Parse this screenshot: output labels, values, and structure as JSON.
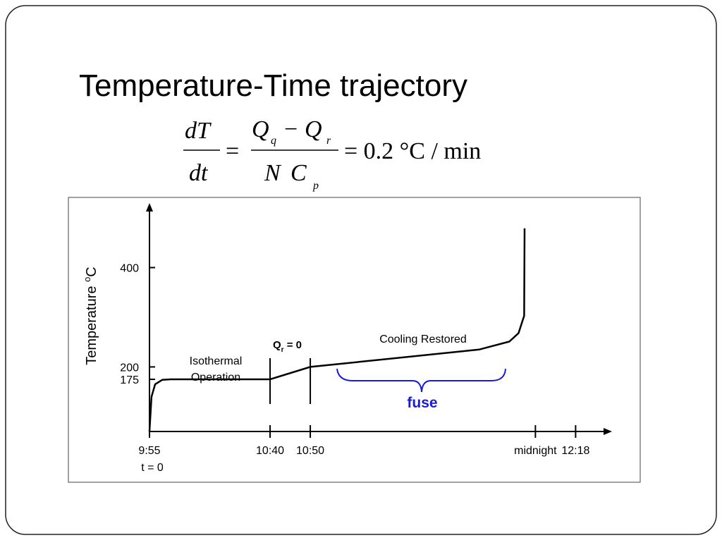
{
  "chart_data": {
    "type": "line",
    "title": "Temperature-Time trajectory",
    "equation": {
      "lhs_num": "dT",
      "lhs_den": "dt",
      "eq1": "=",
      "num_q1": "Q",
      "num_q1_sub": "q",
      "minus": "−",
      "num_q2": "Q",
      "num_q2_sub": "r",
      "den_n": "N",
      "den_c": "C",
      "den_c_sub": "p",
      "rhs": "= 0.2 °C / min"
    },
    "y_label": {
      "text": "Temperature ",
      "sup": "o",
      "unit": "C"
    },
    "annotations": {
      "isothermal": [
        "Isothermal",
        "Operation"
      ],
      "q_zero": {
        "symbol": "Q",
        "sub": "r",
        "rest": " = 0"
      },
      "cooling": "Cooling Restored",
      "fuse": "fuse",
      "t0": "t = 0"
    },
    "x": [
      0,
      0.5,
      1.4,
      3.2,
      5.3,
      30,
      40,
      82,
      89.5,
      91.8,
      93.2,
      93.3
    ],
    "values": [
      70,
      140,
      165,
      174,
      175,
      175,
      200,
      235,
      251,
      268,
      303,
      479
    ],
    "color": "#000000",
    "xlim": [
      0,
      114
    ],
    "xticks": [
      {
        "value": 0,
        "label": "9:55"
      },
      {
        "value": 30,
        "label": "10:40"
      },
      {
        "value": 40,
        "label": "10:50"
      },
      {
        "value": 96,
        "label": "midnight"
      },
      {
        "value": 106,
        "label": "12:18"
      }
    ],
    "ylim": [
      70,
      520
    ],
    "yticks": [
      175,
      200,
      400
    ]
  }
}
